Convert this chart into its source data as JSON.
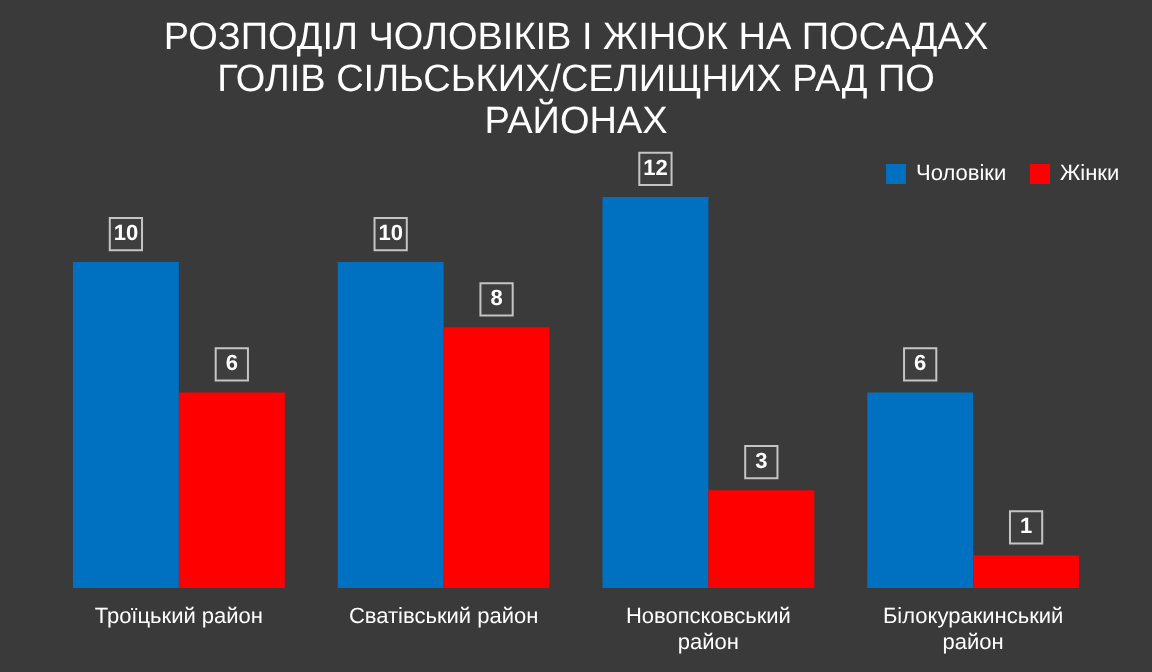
{
  "chart_data": {
    "type": "bar",
    "title": "РОЗПОДІЛ ЧОЛОВІКІВ І ЖІНОК НА ПОСАДАХ ГОЛІВ СІЛЬСЬКИХ/СЕЛИЩНИХ РАД ПО РАЙОНАХ",
    "categories": [
      "Троїцький район",
      "Сватівський район",
      "Новопсковський район",
      "Білокуракинський район"
    ],
    "series": [
      {
        "name": "Чоловіки",
        "color": "#0070c0",
        "values": [
          10,
          10,
          12,
          6
        ]
      },
      {
        "name": "Жінки",
        "color": "#ff0000",
        "values": [
          6,
          8,
          3,
          1
        ]
      }
    ],
    "data_labels": true,
    "legend": "top right",
    "grid": false
  }
}
